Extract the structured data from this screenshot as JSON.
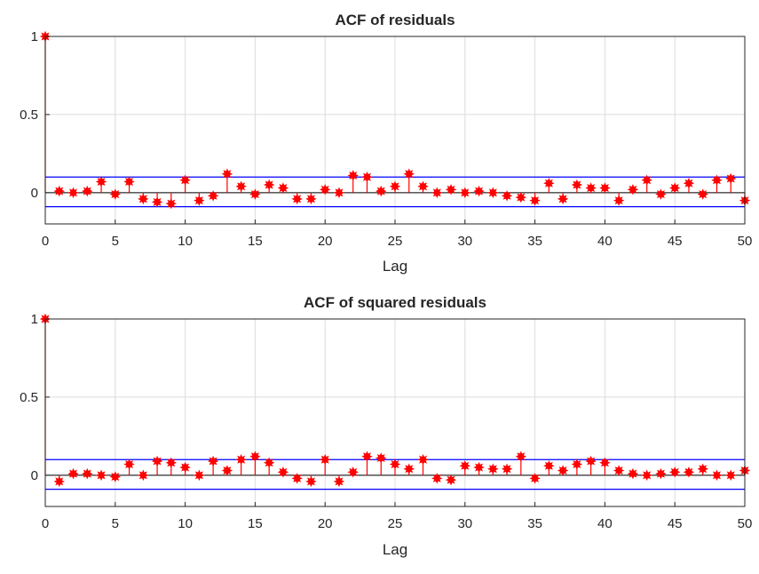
{
  "chart_data": [
    {
      "type": "stem",
      "title": "ACF of residuals",
      "xlabel": "Lag",
      "ylabel": "",
      "xlim": [
        0,
        50
      ],
      "ylim": [
        -0.2,
        1
      ],
      "xticks": [
        0,
        5,
        10,
        15,
        20,
        25,
        30,
        35,
        40,
        45,
        50
      ],
      "yticks": [
        0,
        0.5,
        1
      ],
      "ytick_labels": [
        "0",
        "0.5",
        "1"
      ],
      "grid": true,
      "confidence_bounds": [
        0.1,
        -0.09
      ],
      "lags": [
        0,
        1,
        2,
        3,
        4,
        5,
        6,
        7,
        8,
        9,
        10,
        11,
        12,
        13,
        14,
        15,
        16,
        17,
        18,
        19,
        20,
        21,
        22,
        23,
        24,
        25,
        26,
        27,
        28,
        29,
        30,
        31,
        32,
        33,
        34,
        35,
        36,
        37,
        38,
        39,
        40,
        41,
        42,
        43,
        44,
        45,
        46,
        47,
        48,
        49,
        50
      ],
      "values": [
        1,
        0.01,
        0.0,
        0.01,
        0.07,
        -0.01,
        0.07,
        -0.04,
        -0.06,
        -0.07,
        0.08,
        -0.05,
        -0.02,
        0.12,
        0.04,
        -0.01,
        0.05,
        0.03,
        -0.04,
        -0.04,
        0.02,
        0.0,
        0.11,
        0.1,
        0.01,
        0.04,
        0.12,
        0.04,
        0.0,
        0.02,
        0.0,
        0.01,
        0.0,
        -0.02,
        -0.03,
        -0.05,
        0.06,
        -0.04,
        0.05,
        0.03,
        0.03,
        -0.05,
        0.02,
        0.08,
        -0.01,
        0.03,
        0.06,
        -0.01,
        0.08,
        0.09,
        -0.05
      ],
      "stem_color": "#ff0000",
      "bound_color": "#0000ff",
      "baseline_color": "#000000"
    },
    {
      "type": "stem",
      "title": "ACF of squared residuals",
      "xlabel": "Lag",
      "ylabel": "",
      "xlim": [
        0,
        50
      ],
      "ylim": [
        -0.2,
        1
      ],
      "xticks": [
        0,
        5,
        10,
        15,
        20,
        25,
        30,
        35,
        40,
        45,
        50
      ],
      "yticks": [
        0,
        0.5,
        1
      ],
      "ytick_labels": [
        "0",
        "0.5",
        "1"
      ],
      "grid": true,
      "confidence_bounds": [
        0.1,
        -0.09
      ],
      "lags": [
        0,
        1,
        2,
        3,
        4,
        5,
        6,
        7,
        8,
        9,
        10,
        11,
        12,
        13,
        14,
        15,
        16,
        17,
        18,
        19,
        20,
        21,
        22,
        23,
        24,
        25,
        26,
        27,
        28,
        29,
        30,
        31,
        32,
        33,
        34,
        35,
        36,
        37,
        38,
        39,
        40,
        41,
        42,
        43,
        44,
        45,
        46,
        47,
        48,
        49,
        50
      ],
      "values": [
        1,
        -0.04,
        0.01,
        0.01,
        0.0,
        -0.01,
        0.07,
        0.0,
        0.09,
        0.08,
        0.05,
        0.0,
        0.09,
        0.03,
        0.1,
        0.12,
        0.08,
        0.02,
        -0.02,
        -0.04,
        0.1,
        -0.04,
        0.02,
        0.12,
        0.11,
        0.07,
        0.04,
        0.1,
        -0.02,
        -0.03,
        0.06,
        0.05,
        0.04,
        0.04,
        0.12,
        -0.02,
        0.06,
        0.03,
        0.07,
        0.09,
        0.08,
        0.03,
        0.01,
        0.0,
        0.01,
        0.02,
        0.02,
        0.04,
        0.0,
        0.0,
        0.03
      ],
      "stem_color": "#ff0000",
      "bound_color": "#0000ff",
      "baseline_color": "#000000"
    }
  ]
}
